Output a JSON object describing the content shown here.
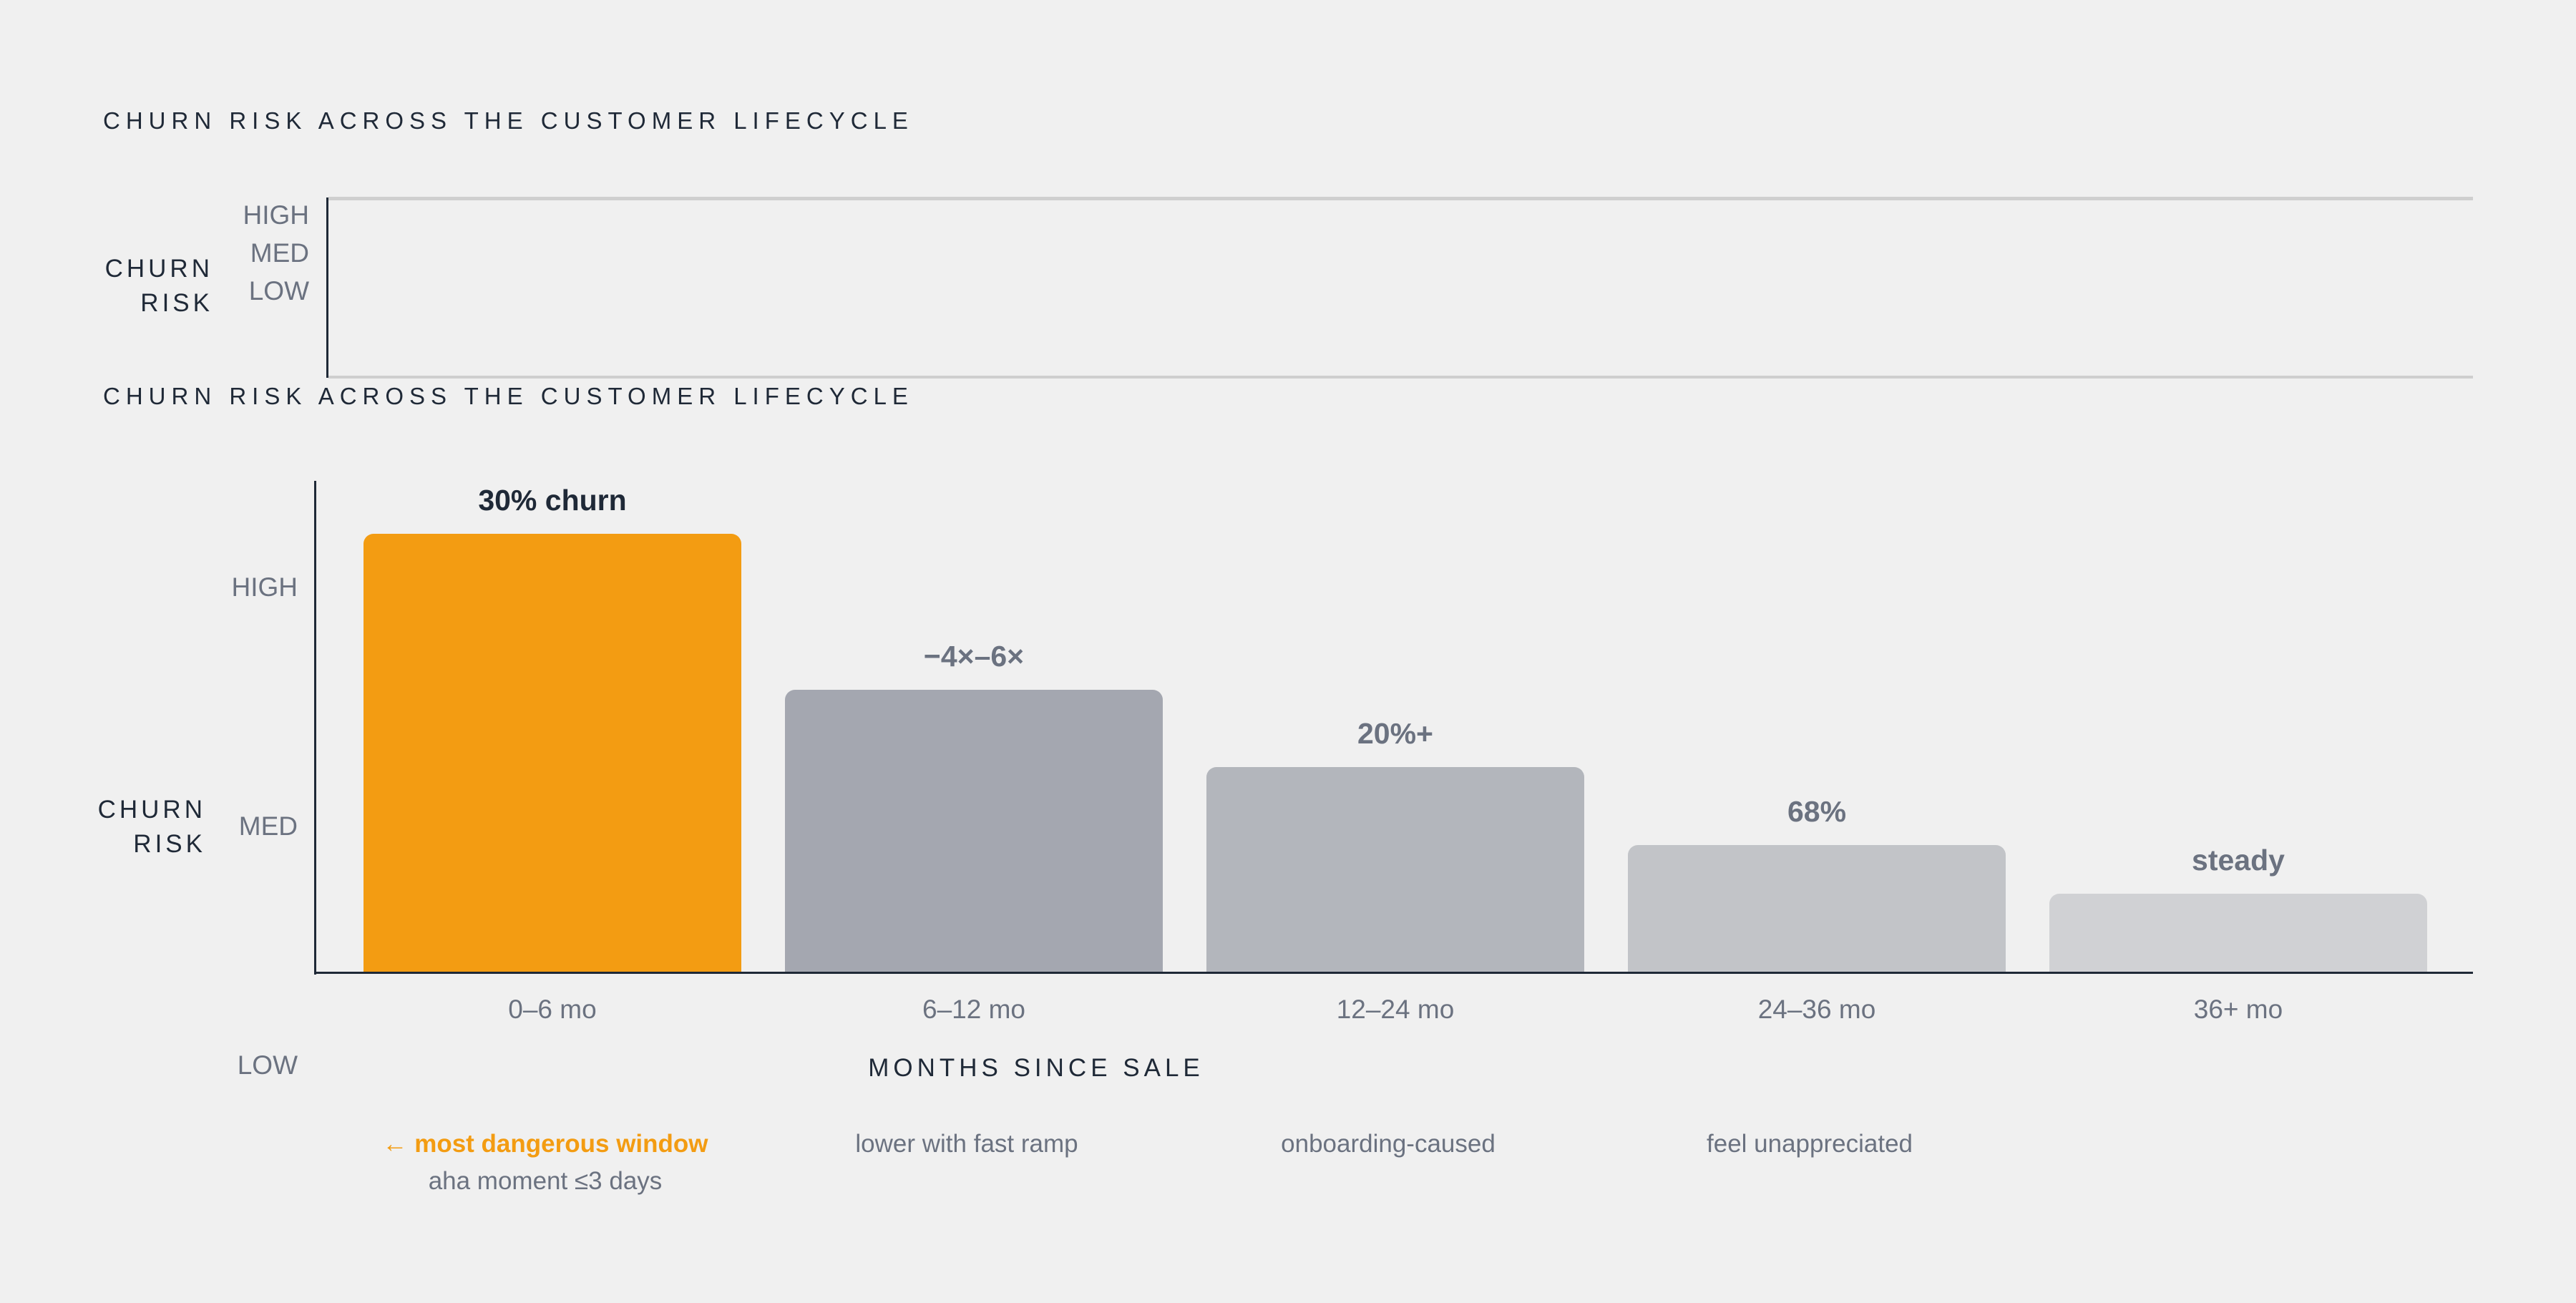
{
  "panel_top": {
    "title": "CHURN RISK ACROSS THE CUSTOMER LIFECYCLE",
    "y_axis_title": [
      "CHURN",
      "RISK"
    ],
    "levels": [
      "HIGH",
      "MED",
      "LOW"
    ]
  },
  "panel_main": {
    "title": "CHURN RISK ACROSS THE CUSTOMER LIFECYCLE",
    "y_axis_title": [
      "CHURN",
      "RISK"
    ],
    "levels": [
      "HIGH",
      "MED",
      "LOW"
    ],
    "x_axis_title": "MONTHS SINCE SALE",
    "notes": [
      {
        "primary": "← most dangerous window",
        "secondary": "aha moment ≤3 days"
      },
      {
        "primary": "lower with fast ramp",
        "secondary": ""
      },
      {
        "primary": "onboarding-caused",
        "secondary": ""
      },
      {
        "primary": "feel unappreciated",
        "secondary": ""
      },
      {
        "primary": "",
        "secondary": ""
      }
    ]
  },
  "chart_data": {
    "type": "bar",
    "title": "CHURN RISK ACROSS THE CUSTOMER LIFECYCLE",
    "xlabel": "MONTHS SINCE SALE",
    "ylabel": "CHURN RISK",
    "categories": [
      "0–6 mo",
      "6–12 mo",
      "12–24 mo",
      "24–36 mo",
      "36+ mo"
    ],
    "values": [
      0.9,
      0.58,
      0.42,
      0.26,
      0.16
    ],
    "ylim": [
      0,
      1
    ],
    "yticks": [
      "HIGH",
      "MED",
      "LOW"
    ],
    "data_labels": [
      "30% churn",
      "−4×–6×",
      "20%+",
      "68%",
      "steady"
    ],
    "highlight_index": 0,
    "colors": [
      "#f39c12",
      "#a4a7b0",
      "#b3b6bc",
      "#c2c4c8",
      "#d0d1d4"
    ],
    "grid": false,
    "legend": "none"
  }
}
